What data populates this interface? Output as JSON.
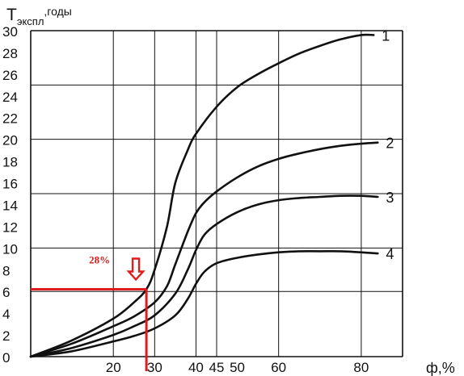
{
  "chart_data": {
    "type": "line",
    "ylabel_main": "T",
    "ylabel_sub": "экспл",
    "ylabel_suffix": ",годы",
    "xlabel": "ф,%",
    "xlim": [
      0,
      90
    ],
    "ylim": [
      0,
      30
    ],
    "y_ticks": [
      "0",
      "2",
      "4",
      "6",
      "8",
      "10",
      "12",
      "14",
      "16",
      "18",
      "20",
      "22",
      "24",
      "26",
      "28",
      "30"
    ],
    "x_ticks": [
      {
        "value": 20,
        "label": "20"
      },
      {
        "value": 30,
        "label": "30"
      },
      {
        "value": 40,
        "label": "40"
      },
      {
        "value": 45,
        "label": "45"
      },
      {
        "value": 50,
        "label": "50"
      },
      {
        "value": 60,
        "label": "60"
      },
      {
        "value": 80,
        "label": "80"
      }
    ],
    "grid": {
      "vertical": [
        20,
        30,
        40,
        45,
        60,
        80
      ],
      "horizontal": [
        6,
        10,
        15,
        20,
        25
      ]
    },
    "series": [
      {
        "name": "1",
        "x": [
          0,
          10,
          20,
          25,
          28,
          30,
          33,
          35,
          38,
          40,
          45,
          50,
          55,
          60,
          65,
          70,
          75,
          80,
          83
        ],
        "y": [
          0,
          1.5,
          3.5,
          5.0,
          6.2,
          8.0,
          12.0,
          16.0,
          19.0,
          20.5,
          23.0,
          24.8,
          26.0,
          27.0,
          27.9,
          28.6,
          29.2,
          29.6,
          29.6
        ]
      },
      {
        "name": "2",
        "x": [
          0,
          10,
          20,
          25,
          30,
          33,
          35,
          38,
          40,
          42,
          45,
          50,
          55,
          60,
          65,
          70,
          75,
          80,
          84
        ],
        "y": [
          0,
          1.2,
          2.8,
          3.7,
          5.0,
          6.5,
          8.5,
          11.5,
          13.2,
          14.2,
          15.2,
          16.5,
          17.5,
          18.2,
          18.7,
          19.1,
          19.4,
          19.6,
          19.7
        ]
      },
      {
        "name": "3",
        "x": [
          0,
          10,
          20,
          25,
          30,
          35,
          38,
          40,
          42,
          45,
          50,
          55,
          60,
          65,
          70,
          75,
          80,
          84
        ],
        "y": [
          0,
          0.8,
          2.0,
          2.8,
          3.8,
          5.8,
          8.0,
          9.8,
          11.2,
          12.2,
          13.3,
          14.0,
          14.4,
          14.6,
          14.7,
          14.8,
          14.8,
          14.7
        ]
      },
      {
        "name": "4",
        "x": [
          0,
          10,
          20,
          25,
          30,
          35,
          38,
          40,
          42,
          45,
          50,
          55,
          60,
          65,
          70,
          75,
          80,
          84
        ],
        "y": [
          0,
          0.5,
          1.4,
          1.9,
          2.6,
          3.8,
          5.3,
          6.7,
          7.8,
          8.6,
          9.1,
          9.4,
          9.6,
          9.7,
          9.7,
          9.7,
          9.6,
          9.5
        ]
      }
    ],
    "annotation": {
      "text": "28%",
      "x": 28,
      "y": 6.2
    }
  }
}
